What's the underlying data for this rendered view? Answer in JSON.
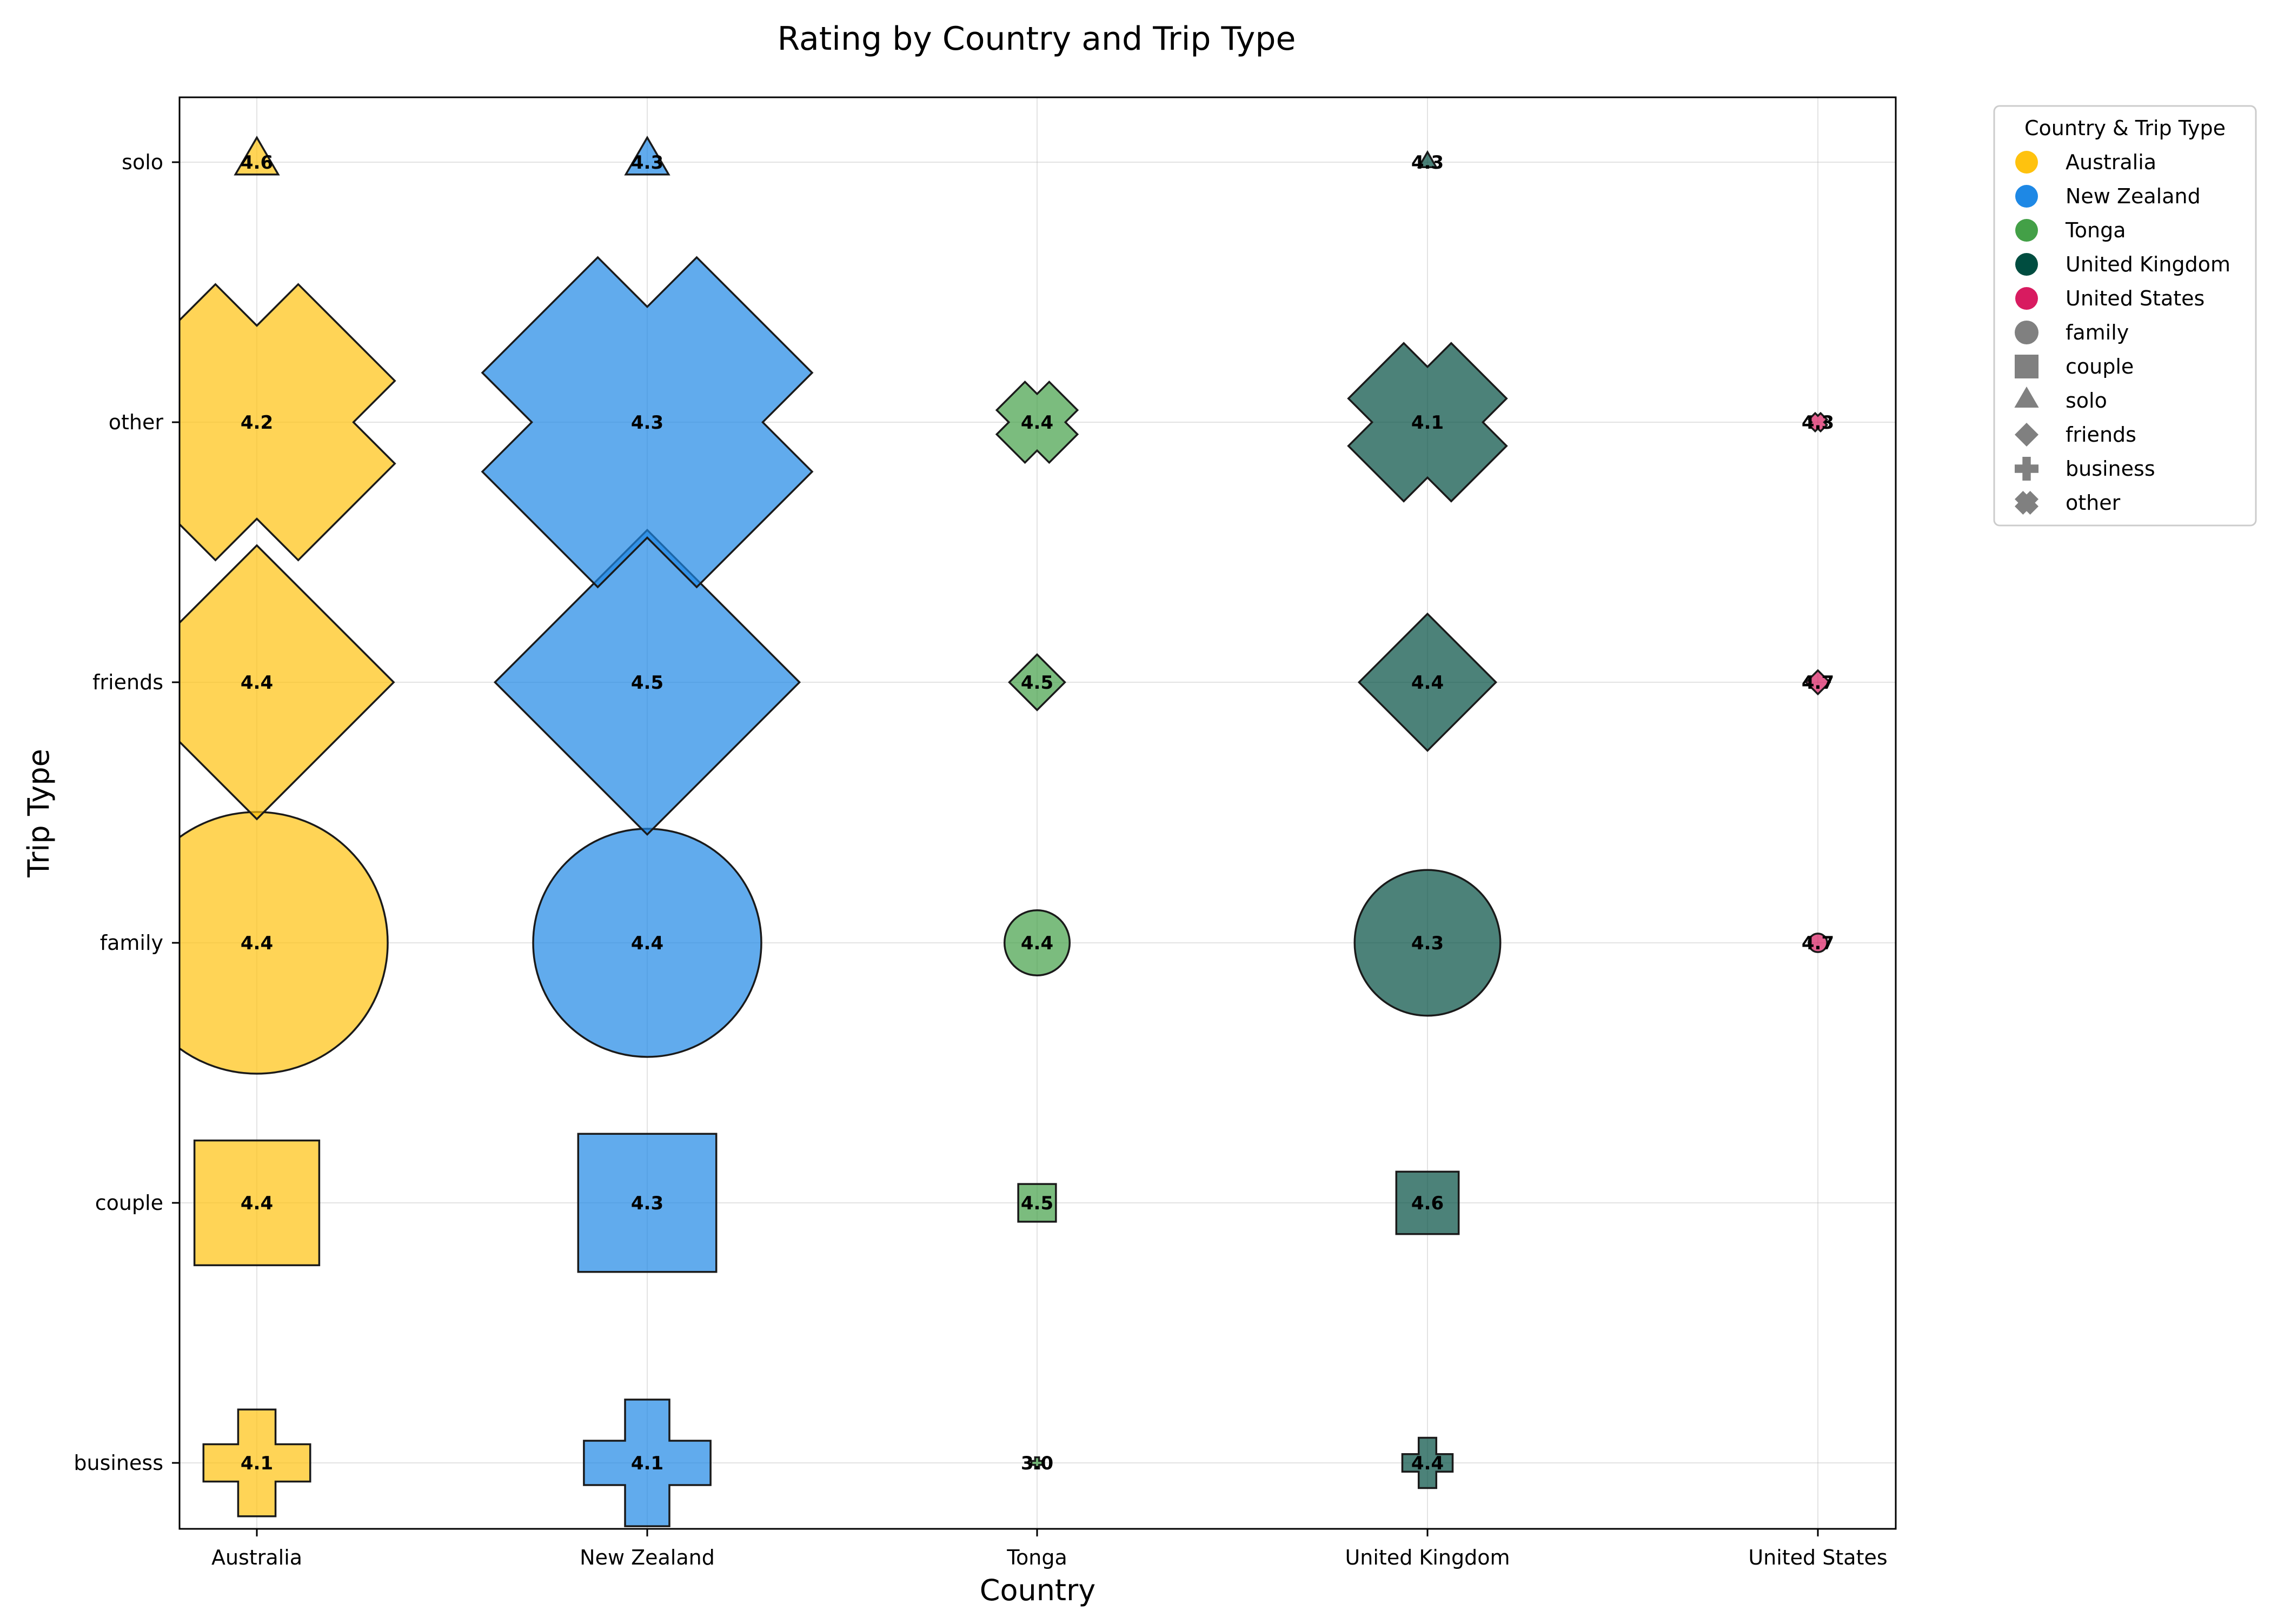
{
  "chart_data": {
    "type": "scatter",
    "title": "Rating by Country and Trip Type",
    "xlabel": "Country",
    "ylabel": "Trip Type",
    "categories": [
      "Australia",
      "New Zealand",
      "Tonga",
      "United Kingdom",
      "United States"
    ],
    "trip_types": [
      "business",
      "couple",
      "family",
      "friends",
      "other",
      "solo"
    ],
    "grid": true,
    "legend": {
      "title": "Country & Trip Type",
      "placement": "outside-top-right",
      "country_entries": [
        "Australia",
        "New Zealand",
        "Tonga",
        "United Kingdom",
        "United States"
      ],
      "trip_type_entries": [
        "family",
        "couple",
        "solo",
        "friends",
        "business",
        "other"
      ]
    },
    "colors": {
      "Australia": "#FFC20E",
      "New Zealand": "#1E88E5",
      "Tonga": "#43A047",
      "United Kingdom": "#004D40",
      "United States": "#D81B60",
      "legend_shape_gray": "#808080"
    },
    "markers": {
      "family": "circle",
      "couple": "square",
      "solo": "triangle",
      "friends": "diamond",
      "business": "plus",
      "other": "x"
    },
    "series": [
      {
        "country": "Australia",
        "points": [
          {
            "trip_type": "solo",
            "rating": 4.6,
            "label": "4.6",
            "size": 0.06
          },
          {
            "trip_type": "other",
            "rating": 4.2,
            "label": "4.2",
            "size": 0.7
          },
          {
            "trip_type": "friends",
            "rating": 4.4,
            "label": "4.4",
            "size": 0.8
          },
          {
            "trip_type": "family",
            "rating": 4.4,
            "label": "4.4",
            "size": 1.0
          },
          {
            "trip_type": "couple",
            "rating": 4.4,
            "label": "4.4",
            "size": 0.8
          },
          {
            "trip_type": "business",
            "rating": 4.1,
            "label": "4.1",
            "size": 0.27
          }
        ]
      },
      {
        "country": "New Zealand",
        "points": [
          {
            "trip_type": "solo",
            "rating": 4.3,
            "label": "4.3",
            "size": 0.06
          },
          {
            "trip_type": "other",
            "rating": 4.3,
            "label": "4.3",
            "size": 1.0
          },
          {
            "trip_type": "friends",
            "rating": 4.5,
            "label": "4.5",
            "size": 0.99
          },
          {
            "trip_type": "family",
            "rating": 4.4,
            "label": "4.4",
            "size": 0.76
          },
          {
            "trip_type": "couple",
            "rating": 4.3,
            "label": "4.3",
            "size": 0.98
          },
          {
            "trip_type": "business",
            "rating": 4.1,
            "label": "4.1",
            "size": 0.38
          }
        ]
      },
      {
        "country": "Tonga",
        "points": [
          {
            "trip_type": "other",
            "rating": 4.4,
            "label": "4.4",
            "size": 0.06
          },
          {
            "trip_type": "friends",
            "rating": 4.5,
            "label": "4.5",
            "size": 0.033
          },
          {
            "trip_type": "family",
            "rating": 4.4,
            "label": "4.4",
            "size": 0.062
          },
          {
            "trip_type": "couple",
            "rating": 4.5,
            "label": "4.5",
            "size": 0.073
          },
          {
            "trip_type": "business",
            "rating": 3.0,
            "label": "3.0",
            "size": 0.003
          }
        ]
      },
      {
        "country": "United Kingdom",
        "points": [
          {
            "trip_type": "solo",
            "rating": 4.3,
            "label": "4.3",
            "size": 0.01
          },
          {
            "trip_type": "other",
            "rating": 4.1,
            "label": "4.1",
            "size": 0.23
          },
          {
            "trip_type": "friends",
            "rating": 4.4,
            "label": "4.4",
            "size": 0.2
          },
          {
            "trip_type": "family",
            "rating": 4.3,
            "label": "4.3",
            "size": 0.31
          },
          {
            "trip_type": "couple",
            "rating": 4.6,
            "label": "4.6",
            "size": 0.2
          },
          {
            "trip_type": "business",
            "rating": 4.4,
            "label": "4.4",
            "size": 0.06
          }
        ]
      },
      {
        "country": "United States",
        "points": [
          {
            "trip_type": "other",
            "rating": 4.3,
            "label": "4.3",
            "size": 0.003
          },
          {
            "trip_type": "friends",
            "rating": 4.7,
            "label": "4.7",
            "size": 0.006
          },
          {
            "trip_type": "family",
            "rating": 4.7,
            "label": "4.7",
            "size": 0.005
          }
        ]
      }
    ]
  }
}
